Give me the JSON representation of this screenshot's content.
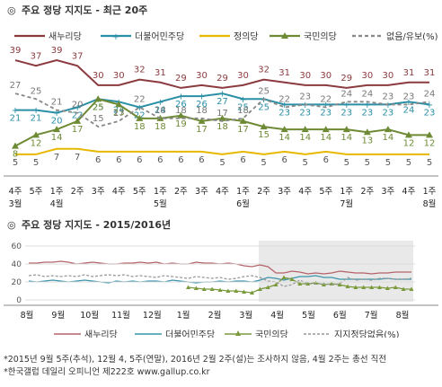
{
  "chart1": {
    "title": "주요 정당 지지도 - 최근 20주",
    "chart_data": {
      "type": "line",
      "title": "주요 정당 지지도 - 최근 20주",
      "x_top": [
        "4주",
        "5주",
        "1주",
        "2주",
        "3주",
        "4주",
        "5주",
        "1주",
        "2주",
        "3주",
        "4주",
        "1주",
        "2주",
        "3주",
        "4주",
        "5주",
        "1주",
        "2주",
        "3주",
        "4주",
        "1주"
      ],
      "x_bottom": [
        "3월",
        "",
        "4월",
        "",
        "",
        "",
        "",
        "5월",
        "",
        "",
        "",
        "6월",
        "",
        "",
        "",
        "",
        "7월",
        "",
        "",
        "",
        "8월"
      ],
      "series": [
        {
          "name": "새누리당",
          "color": "#8b3a3e",
          "values": [
            39,
            37,
            39,
            37,
            30,
            30,
            32,
            31,
            29,
            30,
            29,
            30,
            32,
            31,
            30,
            30,
            29,
            30,
            30,
            31,
            31
          ]
        },
        {
          "name": "더불어민주당",
          "color": "#2b8fa6",
          "values": [
            21,
            21,
            20,
            22,
            25,
            24,
            22,
            24,
            26,
            26,
            27,
            25,
            25,
            23,
            23,
            23,
            23,
            23,
            23,
            24,
            23
          ]
        },
        {
          "name": "정의당",
          "color": "#e6b800",
          "values": [
            5,
            5,
            7,
            7,
            6,
            6,
            6,
            6,
            6,
            6,
            5,
            6,
            5,
            6,
            5,
            6,
            5,
            5,
            5,
            5,
            5
          ]
        },
        {
          "name": "국민의당",
          "color": "#6e8a35",
          "values": [
            8,
            12,
            14,
            17,
            25,
            23,
            18,
            18,
            19,
            17,
            18,
            17,
            15,
            14,
            14,
            14,
            14,
            13,
            14,
            12,
            12
          ]
        },
        {
          "name": "없음/유보(%)",
          "color": "#888888",
          "values": [
            27,
            25,
            21,
            20,
            15,
            17,
            22,
            18,
            18,
            18,
            17,
            18,
            25,
            22,
            23,
            22,
            24,
            24,
            23,
            23,
            24
          ]
        }
      ],
      "ylim": [
        0,
        45
      ]
    }
  },
  "chart2": {
    "title": "주요 정당 지지도 - 2015/2016년",
    "chart_data": {
      "type": "line",
      "title": "주요 정당 지지도 - 2015/2016년",
      "y_ticks": [
        0,
        20,
        40,
        60
      ],
      "ylim": [
        0,
        60
      ],
      "x_ticks": [
        "8월",
        "9월",
        "10월",
        "11월",
        "12월",
        "1월",
        "2월",
        "3월",
        "4월",
        "5월",
        "6월",
        "7월",
        "8월"
      ],
      "series": [
        {
          "name": "새누리당",
          "color": "#b5636a",
          "values": [
            41,
            41,
            42,
            42,
            43,
            42,
            40,
            41,
            42,
            41,
            40,
            40,
            41,
            41,
            42,
            41,
            42,
            40,
            41,
            40,
            40,
            42,
            41,
            41,
            40,
            41,
            40,
            38,
            37,
            39,
            37,
            30,
            30,
            32,
            31,
            29,
            30,
            29,
            30,
            32,
            31,
            30,
            30,
            29,
            30,
            30,
            31,
            31,
            31
          ]
        },
        {
          "name": "더불어민주당",
          "color": "#3a95ac",
          "values": [
            21,
            20,
            21,
            22,
            21,
            20,
            21,
            22,
            21,
            20,
            19,
            21,
            20,
            21,
            20,
            21,
            21,
            20,
            22,
            21,
            20,
            19,
            20,
            20,
            21,
            20,
            21,
            21,
            20,
            22,
            25,
            24,
            22,
            24,
            26,
            26,
            27,
            25,
            25,
            23,
            23,
            23,
            23,
            23,
            23,
            24,
            23,
            23,
            23
          ]
        },
        {
          "name": "국민의당",
          "color": "#7a9a3c",
          "values": [
            null,
            null,
            null,
            null,
            null,
            null,
            null,
            null,
            null,
            null,
            null,
            null,
            null,
            null,
            null,
            null,
            null,
            null,
            null,
            null,
            14,
            13,
            12,
            12,
            11,
            10,
            10,
            9,
            8,
            12,
            14,
            17,
            25,
            23,
            18,
            18,
            19,
            17,
            18,
            17,
            15,
            14,
            14,
            14,
            14,
            13,
            14,
            12,
            12
          ]
        },
        {
          "name": "지지정당없음(%)",
          "color": "#999999",
          "values": [
            27,
            28,
            26,
            27,
            26,
            27,
            26,
            28,
            26,
            27,
            28,
            27,
            28,
            26,
            27,
            26,
            25,
            27,
            26,
            25,
            24,
            26,
            25,
            24,
            25,
            23,
            24,
            26,
            27,
            25,
            21,
            20,
            15,
            17,
            22,
            18,
            18,
            18,
            17,
            18,
            25,
            22,
            23,
            22,
            24,
            24,
            23,
            23,
            24
          ]
        }
      ]
    }
  },
  "footnotes": [
    "*2015년 9월 5주(추석), 12월 4, 5주(연말), 2016년 2월 2주(설)는 조사하지 않음, 4월 2주는 총선 직전",
    "*한국갤럽 데일리 오피니언 제222호 www.gallup.co.kr"
  ]
}
